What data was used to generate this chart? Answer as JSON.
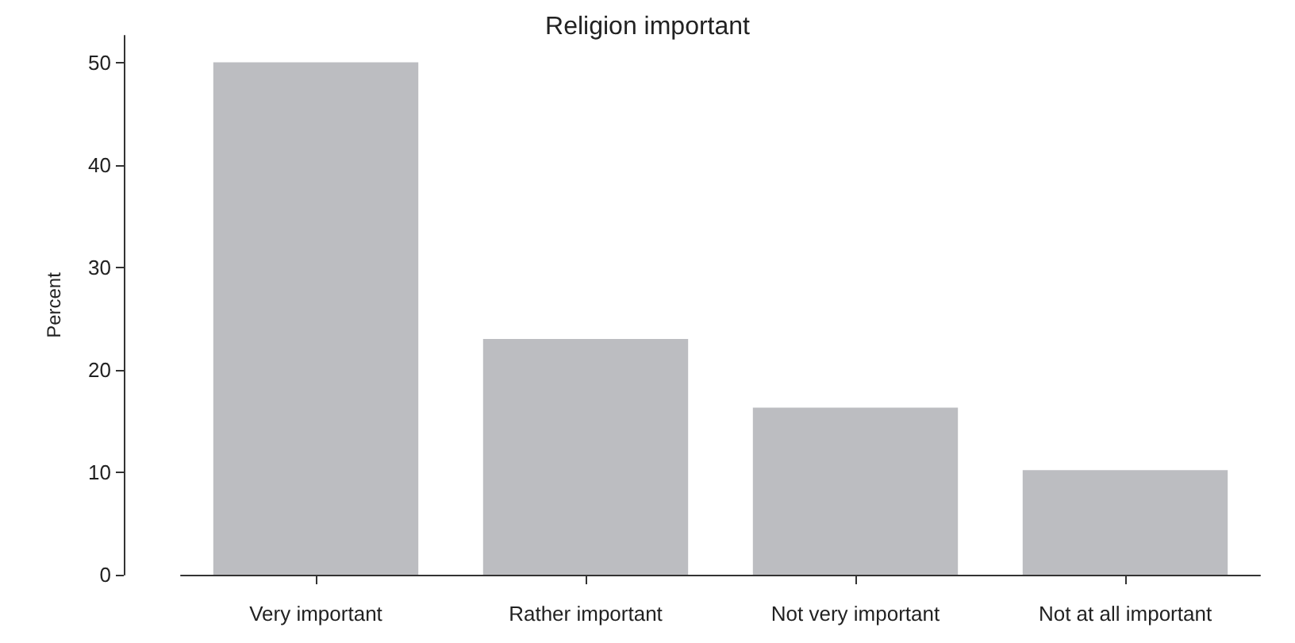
{
  "chart_data": {
    "type": "bar",
    "title": "Religion important",
    "ylabel": "Percent",
    "categories": [
      "Very important",
      "Rather important",
      "Not very important",
      "Not at all important"
    ],
    "values": [
      50,
      23,
      16.3,
      10.2
    ],
    "color": "#bcbdc1",
    "ylim": [
      0,
      52.6
    ],
    "yticks": [
      0,
      10,
      20,
      30,
      40,
      50
    ],
    "grid": false
  }
}
